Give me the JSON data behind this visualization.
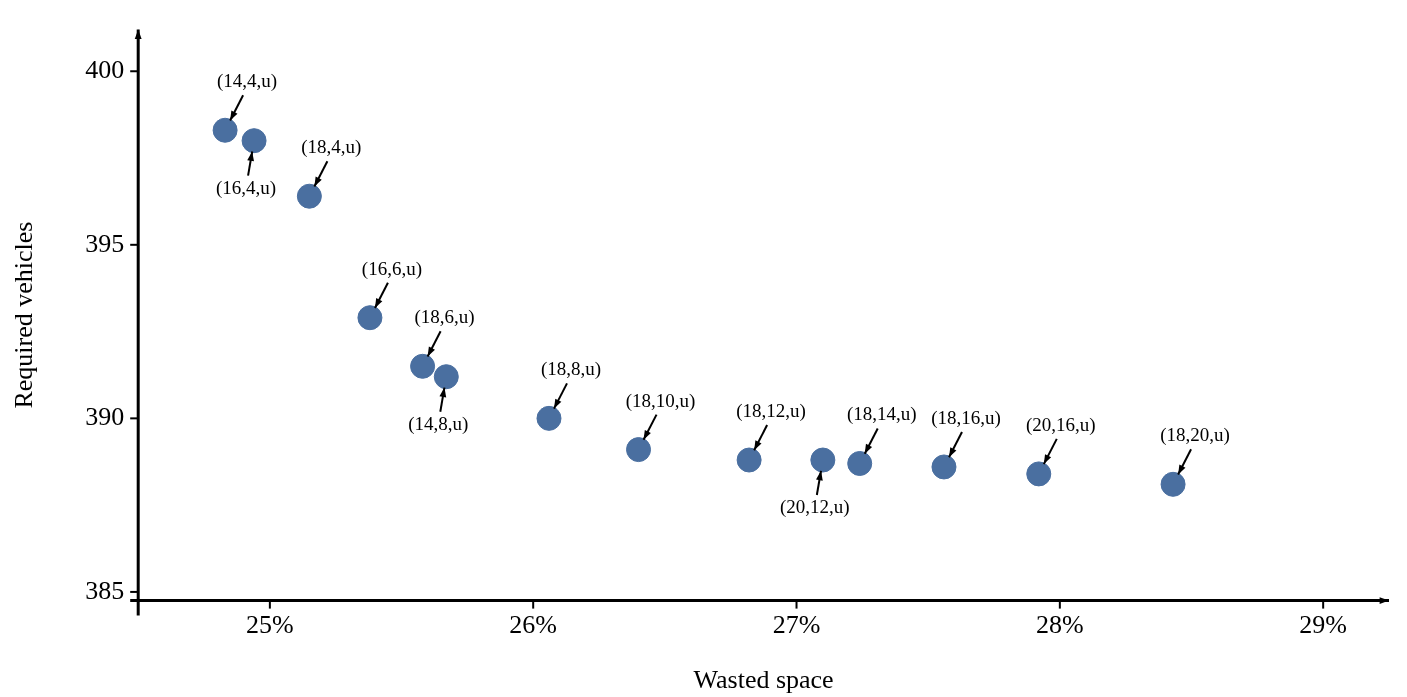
{
  "chart_data": {
    "type": "scatter",
    "xlabel": "Wasted space",
    "ylabel": "Required vehicles",
    "x": [
      24.83,
      24.94,
      25.15,
      25.38,
      25.58,
      25.67,
      26.06,
      26.4,
      26.82,
      27.1,
      27.24,
      27.56,
      27.92,
      28.43
    ],
    "series": [
      {
        "color": "#4a6fa0",
        "values": [
          398.3,
          398.0,
          396.4,
          392.9,
          391.5,
          391.2,
          390.0,
          389.1,
          388.8,
          388.8,
          388.7,
          388.6,
          388.4,
          388.1
        ]
      }
    ],
    "xlim": [
      24.5,
      29.25
    ],
    "ylim": [
      384.75,
      401.2
    ],
    "xticks": [
      {
        "value": 25,
        "label": "25%"
      },
      {
        "value": 26,
        "label": "26%"
      },
      {
        "value": 27,
        "label": "27%"
      },
      {
        "value": 28,
        "label": "28%"
      },
      {
        "value": 29,
        "label": "29%"
      }
    ],
    "yticks": [
      385,
      390,
      395,
      400
    ],
    "grid": false,
    "legend": false,
    "marker": "circle",
    "annotations": [
      {
        "text": "(14,4,u)",
        "x": 24.83,
        "y": 398.3
      },
      {
        "text": "(16,4,u)",
        "x": 24.94,
        "y": 398.0
      },
      {
        "text": "(18,4,u)",
        "x": 25.15,
        "y": 396.4
      },
      {
        "text": "(16,6,u)",
        "x": 25.38,
        "y": 392.9
      },
      {
        "text": "(18,6,u)",
        "x": 25.58,
        "y": 391.5
      },
      {
        "text": "(14,8,u)",
        "x": 25.67,
        "y": 391.2
      },
      {
        "text": "(18,8,u)",
        "x": 26.06,
        "y": 390.0
      },
      {
        "text": "(18,10,u)",
        "x": 26.4,
        "y": 389.1
      },
      {
        "text": "(18,12,u)",
        "x": 26.82,
        "y": 388.8
      },
      {
        "text": "(20,12,u)",
        "x": 27.1,
        "y": 388.8
      },
      {
        "text": "(18,14,u)",
        "x": 27.24,
        "y": 388.7
      },
      {
        "text": "(18,16,u)",
        "x": 27.56,
        "y": 388.6
      },
      {
        "text": "(20,16,u)",
        "x": 27.92,
        "y": 388.4
      },
      {
        "text": "(18,20,u)",
        "x": 28.43,
        "y": 388.1
      }
    ]
  }
}
